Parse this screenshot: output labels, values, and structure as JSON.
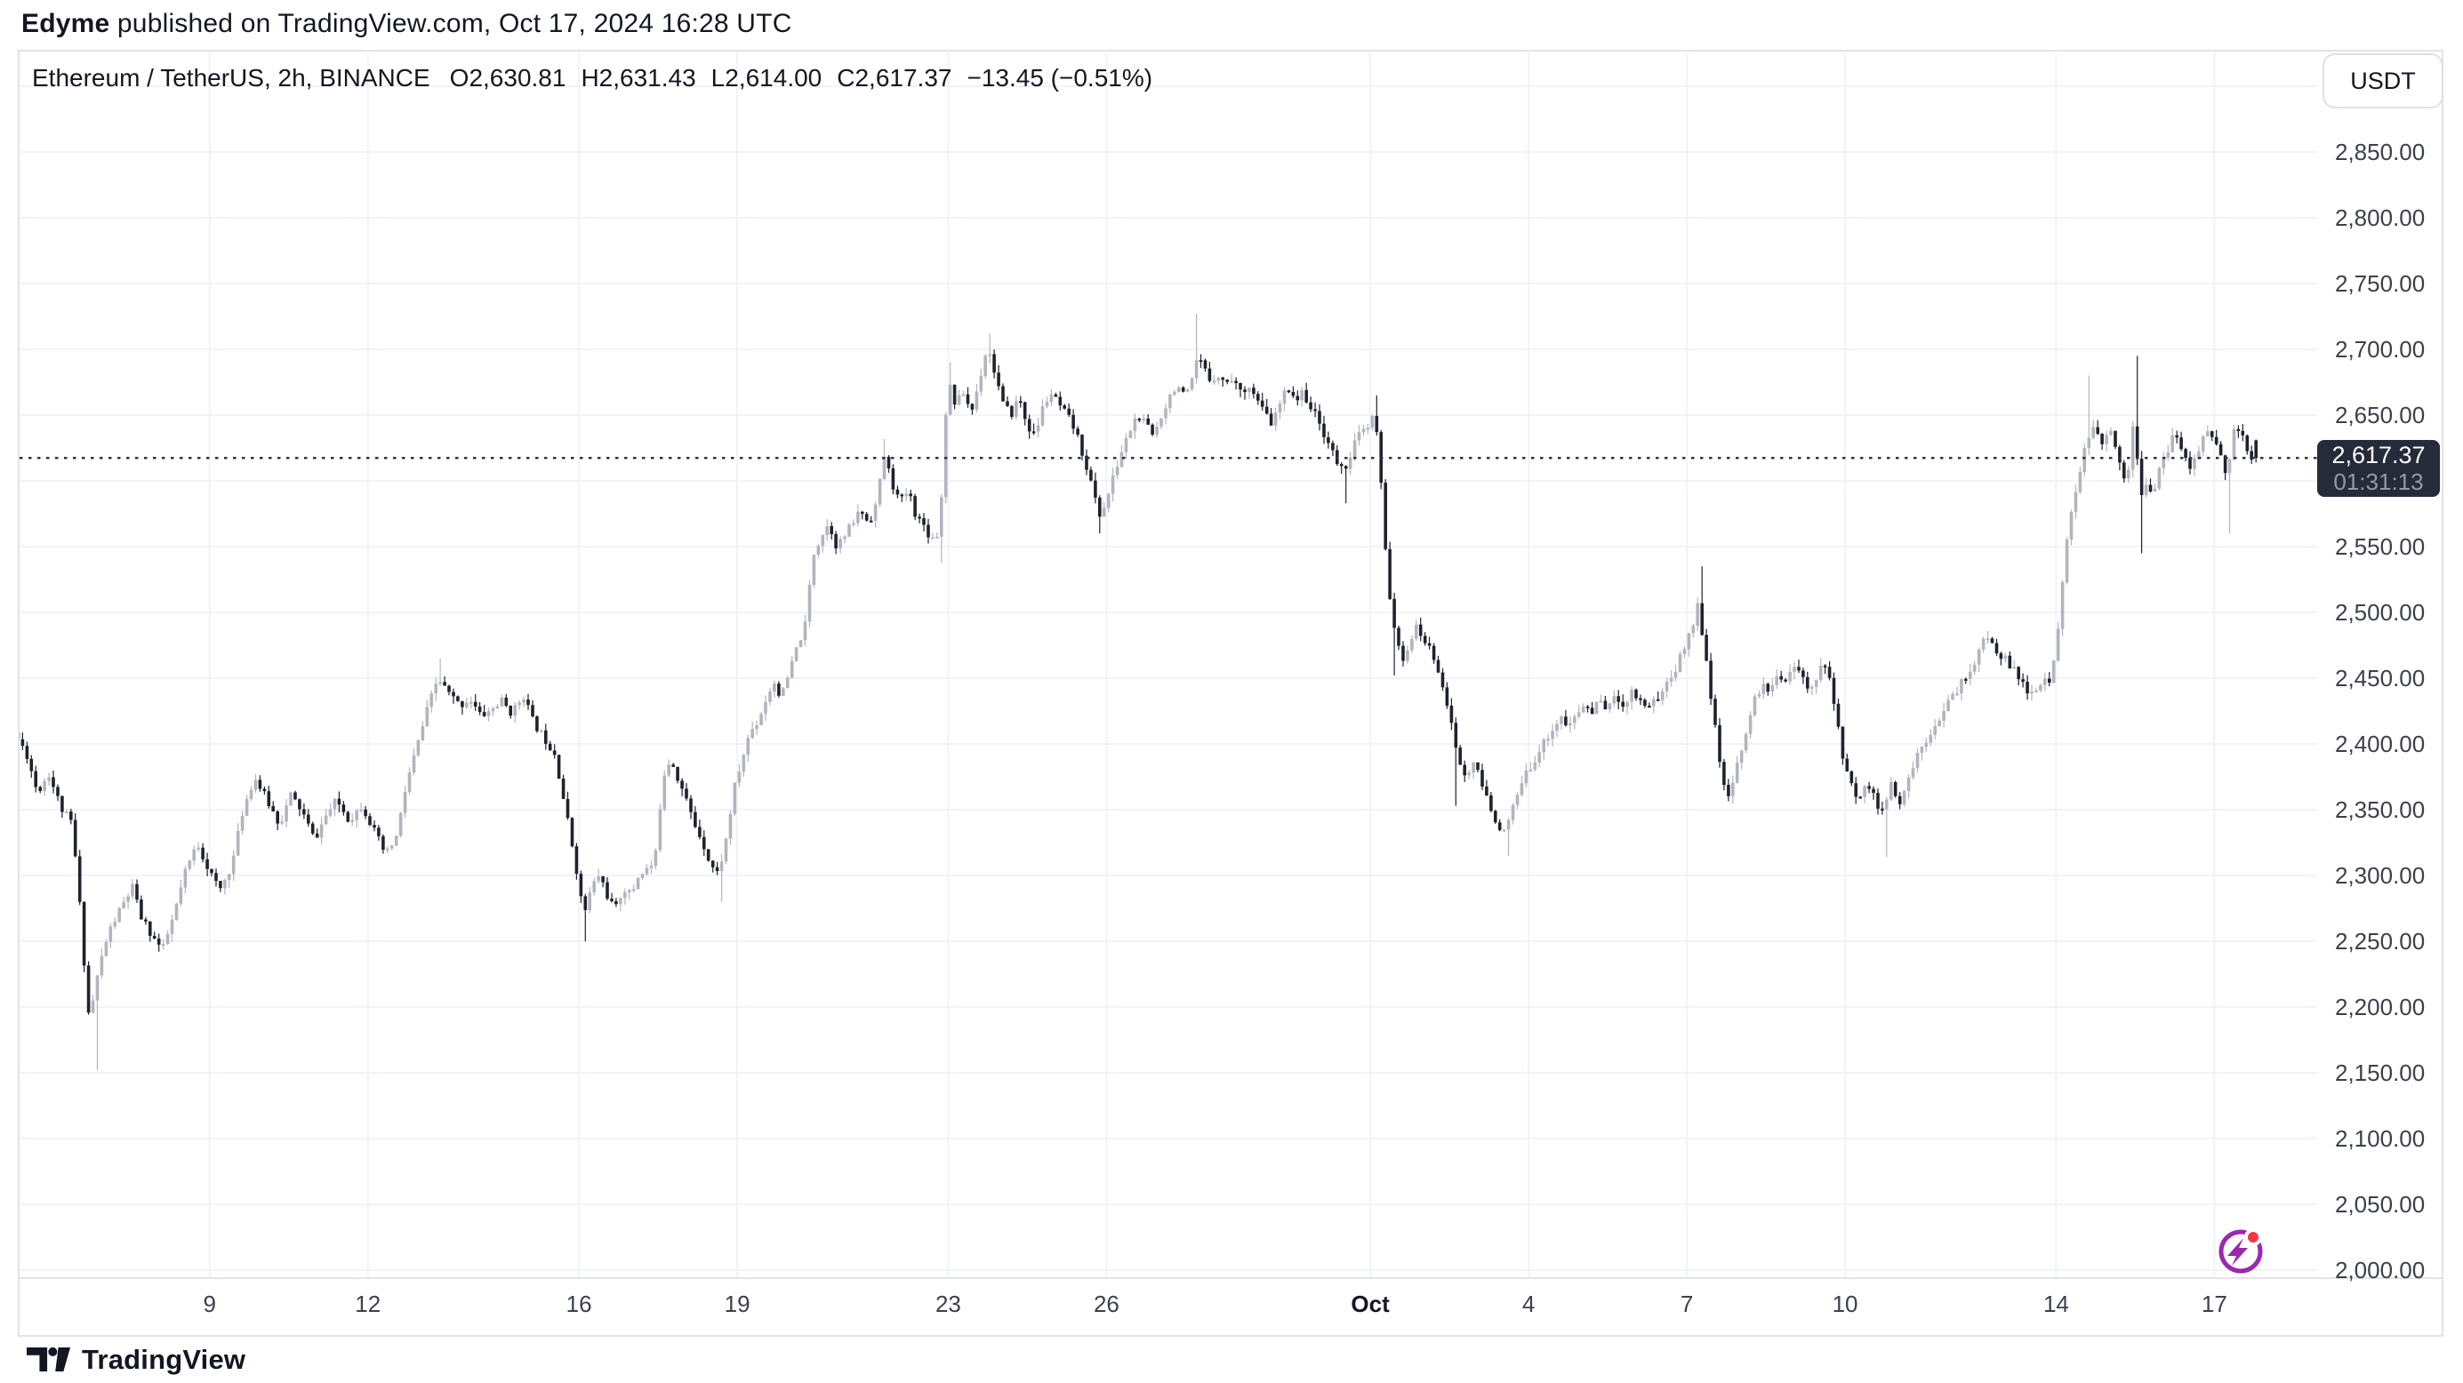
{
  "header": {
    "author": "Edyme",
    "publish_text": " published on TradingView.com, Oct 17, 2024 16:28 UTC"
  },
  "legend": {
    "title": "Ethereum / TetherUS, 2h, BINANCE",
    "values": [
      "O2,630.81",
      "H2,631.43",
      "L2,614.00",
      "C2,617.37",
      "−13.45 (−0.51%)"
    ]
  },
  "axis": {
    "currency": "USDT"
  },
  "current": {
    "price_label": "2,617.37",
    "countdown": "01:31:13"
  },
  "footer": {
    "logo_text": "TradingView"
  },
  "colors": {
    "up_candle": "#b2b5be",
    "down_candle": "#1e222d",
    "grid": "#f0f3fa",
    "border": "#e0e3eb",
    "text": "#131722",
    "axis_text": "#3c404b",
    "badge_bg": "#262b39",
    "badge_countdown": "#949aa5",
    "dotted_line": "#30343f",
    "stream_purple": "#9c27b0",
    "stream_red": "#f23645"
  },
  "chart_data": {
    "type": "candlestick",
    "symbol": "Ethereum / TetherUS",
    "interval": "2h",
    "exchange": "BINANCE",
    "ohlc_readout": {
      "open": 2630.81,
      "high": 2631.43,
      "low": 2614.0,
      "close": 2617.37,
      "change": -13.45,
      "change_pct": -0.51
    },
    "current_price": 2617.37,
    "countdown": "01:31:13",
    "y_axis": {
      "min": 2000,
      "max": 2900,
      "grid_step": 50,
      "labels": [
        {
          "value": 2850,
          "label": "2,850.00"
        },
        {
          "value": 2800,
          "label": "2,800.00"
        },
        {
          "value": 2750,
          "label": "2,750.00"
        },
        {
          "value": 2700,
          "label": "2,700.00"
        },
        {
          "value": 2650,
          "label": "2,650.00"
        },
        {
          "value": 2550,
          "label": "2,550.00"
        },
        {
          "value": 2500,
          "label": "2,500.00"
        },
        {
          "value": 2450,
          "label": "2,450.00"
        },
        {
          "value": 2400,
          "label": "2,400.00"
        },
        {
          "value": 2350,
          "label": "2,350.00"
        },
        {
          "value": 2300,
          "label": "2,300.00"
        },
        {
          "value": 2250,
          "label": "2,250.00"
        },
        {
          "value": 2200,
          "label": "2,200.00"
        },
        {
          "value": 2150,
          "label": "2,150.00"
        },
        {
          "value": 2100,
          "label": "2,100.00"
        },
        {
          "value": 2050,
          "label": "2,050.00"
        },
        {
          "value": 2000,
          "label": "2,000.00"
        }
      ]
    },
    "x_axis": {
      "ticks": [
        {
          "label": "9",
          "day": 4,
          "bold": false
        },
        {
          "label": "12",
          "day": 7,
          "bold": false
        },
        {
          "label": "16",
          "day": 11,
          "bold": false
        },
        {
          "label": "19",
          "day": 14,
          "bold": false
        },
        {
          "label": "23",
          "day": 18,
          "bold": false
        },
        {
          "label": "26",
          "day": 21,
          "bold": false
        },
        {
          "label": "Oct",
          "day": 26,
          "bold": true
        },
        {
          "label": "4",
          "day": 29,
          "bold": false
        },
        {
          "label": "7",
          "day": 32,
          "bold": false
        },
        {
          "label": "10",
          "day": 35,
          "bold": false
        },
        {
          "label": "14",
          "day": 39,
          "bold": false
        },
        {
          "label": "17",
          "day": 42,
          "bold": false
        }
      ]
    },
    "start_day": 0.33,
    "end_day": 42.75,
    "candle_hours": 2,
    "last_candle": {
      "open": 2630.81,
      "high": 2631.43,
      "low": 2614.0,
      "close": 2617.37
    },
    "price_path": [
      [
        0.33,
        2409
      ],
      [
        0.57,
        2393
      ],
      [
        0.78,
        2363
      ],
      [
        0.99,
        2378
      ],
      [
        1.23,
        2351
      ],
      [
        1.44,
        2339
      ],
      [
        1.59,
        2273
      ],
      [
        1.74,
        2195
      ],
      [
        1.83,
        2205
      ],
      [
        1.95,
        2231
      ],
      [
        2.13,
        2257
      ],
      [
        2.37,
        2276
      ],
      [
        2.58,
        2291
      ],
      [
        2.73,
        2269
      ],
      [
        2.94,
        2255
      ],
      [
        3.15,
        2243
      ],
      [
        3.36,
        2269
      ],
      [
        3.57,
        2301
      ],
      [
        3.81,
        2325
      ],
      [
        4.02,
        2305
      ],
      [
        4.23,
        2288
      ],
      [
        4.47,
        2309
      ],
      [
        4.68,
        2351
      ],
      [
        4.89,
        2375
      ],
      [
        5.13,
        2357
      ],
      [
        5.37,
        2339
      ],
      [
        5.58,
        2361
      ],
      [
        5.79,
        2349
      ],
      [
        6.03,
        2327
      ],
      [
        6.24,
        2345
      ],
      [
        6.45,
        2357
      ],
      [
        6.69,
        2342
      ],
      [
        6.93,
        2354
      ],
      [
        7.17,
        2333
      ],
      [
        7.38,
        2315
      ],
      [
        7.59,
        2330
      ],
      [
        7.77,
        2369
      ],
      [
        7.98,
        2399
      ],
      [
        8.19,
        2429
      ],
      [
        8.37,
        2450
      ],
      [
        8.58,
        2438
      ],
      [
        8.79,
        2429
      ],
      [
        8.97,
        2435
      ],
      [
        9.18,
        2421
      ],
      [
        9.39,
        2426
      ],
      [
        9.57,
        2433
      ],
      [
        9.78,
        2423
      ],
      [
        9.99,
        2438
      ],
      [
        10.17,
        2417
      ],
      [
        10.38,
        2405
      ],
      [
        10.59,
        2393
      ],
      [
        10.77,
        2354
      ],
      [
        10.98,
        2309
      ],
      [
        11.13,
        2269
      ],
      [
        11.28,
        2291
      ],
      [
        11.43,
        2301
      ],
      [
        11.58,
        2285
      ],
      [
        11.73,
        2273
      ],
      [
        11.88,
        2291
      ],
      [
        12.03,
        2285
      ],
      [
        12.18,
        2301
      ],
      [
        12.33,
        2305
      ],
      [
        12.48,
        2309
      ],
      [
        12.63,
        2375
      ],
      [
        12.78,
        2390
      ],
      [
        12.93,
        2373
      ],
      [
        13.08,
        2357
      ],
      [
        13.23,
        2339
      ],
      [
        13.38,
        2327
      ],
      [
        13.53,
        2309
      ],
      [
        13.68,
        2301
      ],
      [
        13.83,
        2327
      ],
      [
        13.98,
        2365
      ],
      [
        14.13,
        2387
      ],
      [
        14.28,
        2409
      ],
      [
        14.43,
        2417
      ],
      [
        14.58,
        2433
      ],
      [
        14.73,
        2448
      ],
      [
        14.88,
        2435
      ],
      [
        15.03,
        2454
      ],
      [
        15.18,
        2474
      ],
      [
        15.33,
        2490
      ],
      [
        15.48,
        2544
      ],
      [
        15.63,
        2558
      ],
      [
        15.78,
        2568
      ],
      [
        15.93,
        2550
      ],
      [
        16.08,
        2558
      ],
      [
        16.23,
        2568
      ],
      [
        16.38,
        2578
      ],
      [
        16.53,
        2568
      ],
      [
        16.68,
        2583
      ],
      [
        16.83,
        2619
      ],
      [
        16.98,
        2598
      ],
      [
        17.13,
        2583
      ],
      [
        17.28,
        2593
      ],
      [
        17.43,
        2574
      ],
      [
        17.58,
        2566
      ],
      [
        17.73,
        2556
      ],
      [
        17.88,
        2562
      ],
      [
        18.03,
        2679
      ],
      [
        18.18,
        2658
      ],
      [
        18.33,
        2667
      ],
      [
        18.48,
        2652
      ],
      [
        18.63,
        2676
      ],
      [
        18.78,
        2703
      ],
      [
        18.93,
        2682
      ],
      [
        19.08,
        2658
      ],
      [
        19.23,
        2650
      ],
      [
        19.38,
        2664
      ],
      [
        19.53,
        2643
      ],
      [
        19.68,
        2634
      ],
      [
        19.83,
        2655
      ],
      [
        19.98,
        2667
      ],
      [
        20.13,
        2658
      ],
      [
        20.28,
        2650
      ],
      [
        20.43,
        2640
      ],
      [
        20.58,
        2622
      ],
      [
        20.67,
        2610
      ],
      [
        20.79,
        2592
      ],
      [
        20.91,
        2574
      ],
      [
        21.03,
        2583
      ],
      [
        21.18,
        2604
      ],
      [
        21.33,
        2622
      ],
      [
        21.48,
        2638
      ],
      [
        21.63,
        2650
      ],
      [
        21.78,
        2643
      ],
      [
        21.93,
        2634
      ],
      [
        22.08,
        2650
      ],
      [
        22.23,
        2664
      ],
      [
        22.38,
        2674
      ],
      [
        22.53,
        2662
      ],
      [
        22.68,
        2676
      ],
      [
        22.77,
        2694
      ],
      [
        22.89,
        2685
      ],
      [
        23.01,
        2676
      ],
      [
        23.13,
        2682
      ],
      [
        23.28,
        2674
      ],
      [
        23.43,
        2679
      ],
      [
        23.58,
        2667
      ],
      [
        23.73,
        2674
      ],
      [
        23.88,
        2662
      ],
      [
        24.03,
        2652
      ],
      [
        24.18,
        2643
      ],
      [
        24.33,
        2658
      ],
      [
        24.48,
        2672
      ],
      [
        24.63,
        2662
      ],
      [
        24.78,
        2667
      ],
      [
        24.93,
        2655
      ],
      [
        25.08,
        2643
      ],
      [
        25.23,
        2631
      ],
      [
        25.38,
        2616
      ],
      [
        25.53,
        2607
      ],
      [
        25.68,
        2622
      ],
      [
        25.77,
        2631
      ],
      [
        25.89,
        2638
      ],
      [
        26.02,
        2640
      ],
      [
        26.1,
        2650
      ],
      [
        26.2,
        2628
      ],
      [
        26.3,
        2560
      ],
      [
        26.42,
        2510
      ],
      [
        26.54,
        2478
      ],
      [
        26.66,
        2460
      ],
      [
        26.78,
        2478
      ],
      [
        26.9,
        2488
      ],
      [
        27.02,
        2482
      ],
      [
        27.14,
        2474
      ],
      [
        27.26,
        2464
      ],
      [
        27.38,
        2452
      ],
      [
        27.5,
        2430
      ],
      [
        27.62,
        2405
      ],
      [
        27.74,
        2385
      ],
      [
        27.86,
        2372
      ],
      [
        27.98,
        2388
      ],
      [
        28.1,
        2375
      ],
      [
        28.22,
        2362
      ],
      [
        28.34,
        2348
      ],
      [
        28.46,
        2340
      ],
      [
        28.58,
        2332
      ],
      [
        28.7,
        2345
      ],
      [
        28.82,
        2360
      ],
      [
        28.94,
        2372
      ],
      [
        29.06,
        2382
      ],
      [
        29.2,
        2392
      ],
      [
        29.35,
        2402
      ],
      [
        29.5,
        2412
      ],
      [
        29.65,
        2420
      ],
      [
        29.8,
        2412
      ],
      [
        29.95,
        2422
      ],
      [
        30.1,
        2430
      ],
      [
        30.25,
        2424
      ],
      [
        30.4,
        2434
      ],
      [
        30.55,
        2427
      ],
      [
        30.7,
        2436
      ],
      [
        30.85,
        2430
      ],
      [
        31.0,
        2440
      ],
      [
        31.15,
        2434
      ],
      [
        31.3,
        2428
      ],
      [
        31.42,
        2435
      ],
      [
        31.53,
        2435
      ],
      [
        31.68,
        2448
      ],
      [
        31.83,
        2457
      ],
      [
        31.98,
        2472
      ],
      [
        32.13,
        2488
      ],
      [
        32.25,
        2505
      ],
      [
        32.4,
        2470
      ],
      [
        32.55,
        2420
      ],
      [
        32.7,
        2375
      ],
      [
        32.85,
        2355
      ],
      [
        33.0,
        2385
      ],
      [
        33.15,
        2408
      ],
      [
        33.3,
        2430
      ],
      [
        33.45,
        2445
      ],
      [
        33.6,
        2438
      ],
      [
        33.75,
        2455
      ],
      [
        33.9,
        2448
      ],
      [
        34.05,
        2460
      ],
      [
        34.2,
        2452
      ],
      [
        34.35,
        2442
      ],
      [
        34.5,
        2452
      ],
      [
        34.68,
        2462
      ],
      [
        34.83,
        2430
      ],
      [
        34.98,
        2395
      ],
      [
        35.13,
        2370
      ],
      [
        35.28,
        2358
      ],
      [
        35.43,
        2372
      ],
      [
        35.58,
        2360
      ],
      [
        35.73,
        2348
      ],
      [
        35.91,
        2368
      ],
      [
        36.09,
        2352
      ],
      [
        36.27,
        2378
      ],
      [
        36.45,
        2395
      ],
      [
        36.63,
        2408
      ],
      [
        36.81,
        2420
      ],
      [
        36.99,
        2430
      ],
      [
        37.17,
        2442
      ],
      [
        37.35,
        2452
      ],
      [
        37.53,
        2465
      ],
      [
        37.71,
        2482
      ],
      [
        37.89,
        2472
      ],
      [
        38.07,
        2465
      ],
      [
        38.25,
        2455
      ],
      [
        38.43,
        2443
      ],
      [
        38.61,
        2438
      ],
      [
        38.79,
        2446
      ],
      [
        38.91,
        2448
      ],
      [
        39.03,
        2470
      ],
      [
        39.15,
        2520
      ],
      [
        39.27,
        2560
      ],
      [
        39.39,
        2590
      ],
      [
        39.51,
        2612
      ],
      [
        39.63,
        2630
      ],
      [
        39.78,
        2640
      ],
      [
        39.93,
        2625
      ],
      [
        40.08,
        2640
      ],
      [
        40.23,
        2615
      ],
      [
        40.38,
        2600
      ],
      [
        40.53,
        2650
      ],
      [
        40.62,
        2585
      ],
      [
        40.74,
        2600
      ],
      [
        40.86,
        2590
      ],
      [
        40.98,
        2605
      ],
      [
        41.13,
        2620
      ],
      [
        41.28,
        2635
      ],
      [
        41.43,
        2625
      ],
      [
        41.58,
        2610
      ],
      [
        41.73,
        2622
      ],
      [
        41.88,
        2640
      ],
      [
        42.03,
        2630
      ],
      [
        42.18,
        2618
      ],
      [
        42.27,
        2600
      ],
      [
        42.39,
        2635
      ],
      [
        42.51,
        2640
      ],
      [
        42.63,
        2626
      ],
      [
        42.75,
        2617.37
      ]
    ],
    "wicks": [
      [
        1.83,
        "low",
        2152
      ],
      [
        8.37,
        "high",
        2465
      ],
      [
        11.16,
        "low",
        2250
      ],
      [
        13.68,
        "low",
        2280
      ],
      [
        16.83,
        "high",
        2632
      ],
      [
        17.9,
        "low",
        2538
      ],
      [
        18.06,
        "high",
        2690
      ],
      [
        18.78,
        "high",
        2712
      ],
      [
        20.91,
        "low",
        2560
      ],
      [
        22.74,
        "high",
        2727
      ],
      [
        25.5,
        "low",
        2583
      ],
      [
        26.08,
        "high",
        2665
      ],
      [
        26.46,
        "low",
        2452
      ],
      [
        27.58,
        "low",
        2353
      ],
      [
        28.6,
        "low",
        2315
      ],
      [
        32.3,
        "high",
        2535
      ],
      [
        35.75,
        "low",
        2314
      ],
      [
        39.66,
        "high",
        2680
      ],
      [
        40.55,
        "high",
        2695
      ],
      [
        40.63,
        "low",
        2545
      ],
      [
        42.3,
        "low",
        2560
      ]
    ]
  }
}
